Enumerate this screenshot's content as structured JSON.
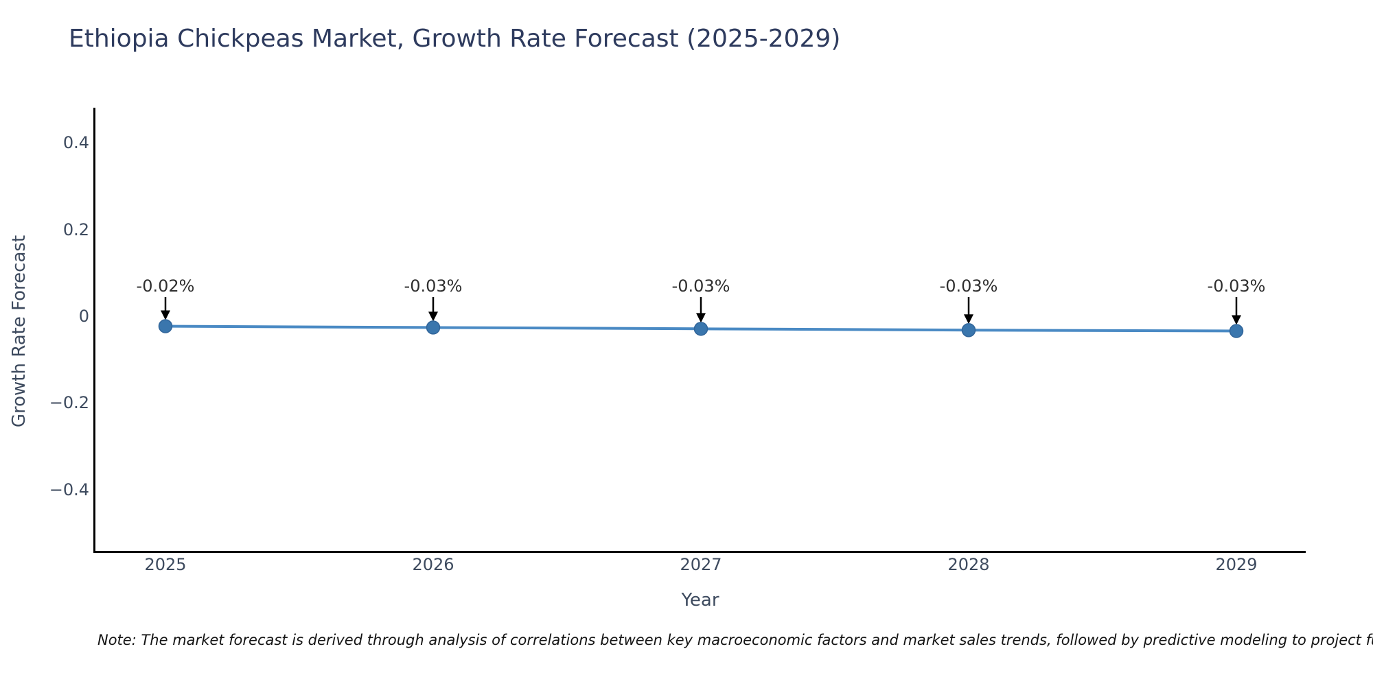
{
  "title": "Ethiopia Chickpeas Market, Growth Rate Forecast (2025-2029)",
  "chart_data": {
    "type": "line",
    "x": [
      "2025",
      "2026",
      "2027",
      "2028",
      "2029"
    ],
    "values": [
      -0.023,
      -0.026,
      -0.029,
      -0.032,
      -0.034
    ],
    "point_labels": [
      "-0.02%",
      "-0.03%",
      "-0.03%",
      "-0.03%",
      "-0.03%"
    ],
    "title": "Ethiopia Chickpeas Market, Growth Rate Forecast (2025-2029)",
    "xlabel": "Year",
    "ylabel": "Growth Rate Forecast",
    "y_ticks": [
      "0.4",
      "0.2",
      "0",
      "−0.2",
      "−0.4"
    ],
    "y_tick_values": [
      0.4,
      0.2,
      0,
      -0.2,
      -0.4
    ],
    "ylim": [
      -0.54,
      0.48
    ],
    "grid": false,
    "legend_position": "none",
    "marker": "circle",
    "annotation_style": "down-arrow-to-point"
  },
  "note": "Note: The market forecast is derived through analysis of correlations between key macroeconomic factors and market sales trends, followed by predictive modeling to project future sales.",
  "colors": {
    "line": "#4a8ac4",
    "marker_fill": "#3a76ad",
    "marker_edge": "#31659a",
    "arrow": "#000000",
    "title_text": "#2e3b5e",
    "axis_text": "#3d4a5e",
    "annotation_text": "#2f2f2f",
    "note_text": "#141414",
    "spine": "#000000",
    "background": "#ffffff"
  }
}
